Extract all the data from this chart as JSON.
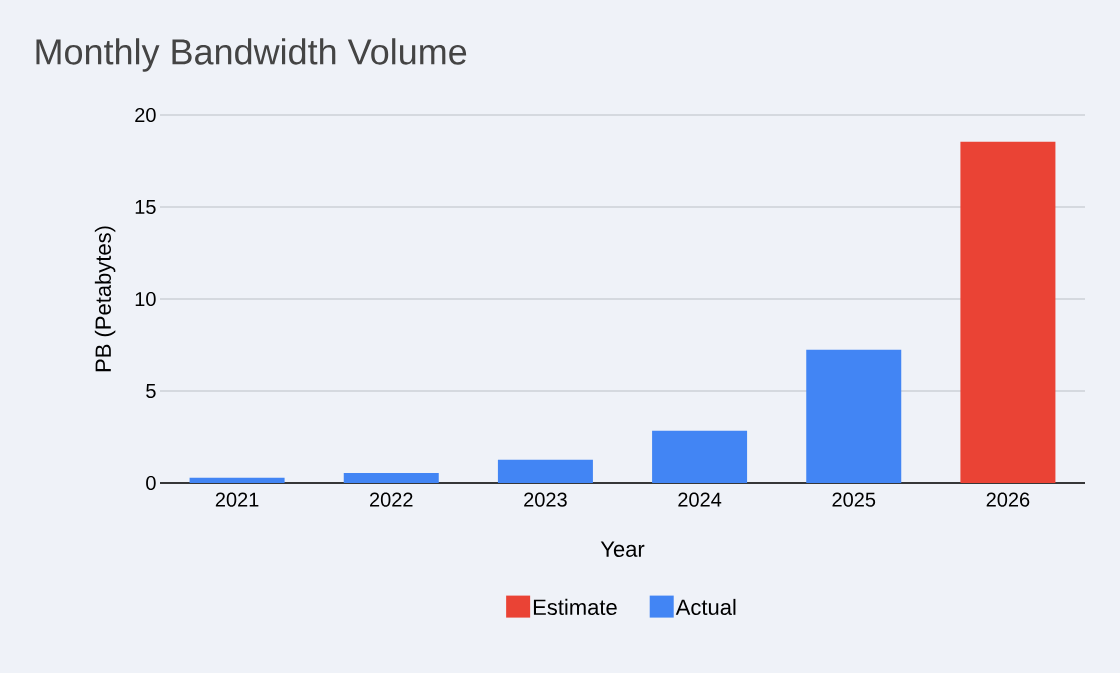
{
  "chart_data": {
    "type": "bar",
    "title": "Monthly Bandwidth Volume",
    "xlabel": "Year",
    "ylabel": "PB (Petabytes)",
    "categories": [
      "2021",
      "2022",
      "2023",
      "2024",
      "2025",
      "2026"
    ],
    "series": [
      {
        "name": "Estimate",
        "color": "#ea4335",
        "values": [
          null,
          null,
          null,
          null,
          null,
          18.55
        ]
      },
      {
        "name": "Actual",
        "color": "#4285f4",
        "values": [
          0.29,
          0.55,
          1.26,
          2.84,
          7.24,
          null
        ]
      }
    ],
    "ylim": [
      0,
      20
    ],
    "yticks": [
      0,
      5,
      10,
      15,
      20
    ],
    "grid": "y",
    "legend": "bottom"
  }
}
